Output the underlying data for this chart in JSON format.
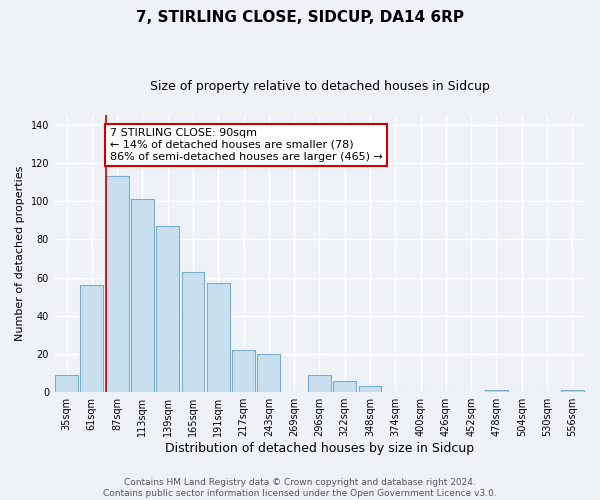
{
  "title": "7, STIRLING CLOSE, SIDCUP, DA14 6RP",
  "subtitle": "Size of property relative to detached houses in Sidcup",
  "xlabel": "Distribution of detached houses by size in Sidcup",
  "ylabel": "Number of detached properties",
  "bar_labels": [
    "35sqm",
    "61sqm",
    "87sqm",
    "113sqm",
    "139sqm",
    "165sqm",
    "191sqm",
    "217sqm",
    "243sqm",
    "269sqm",
    "296sqm",
    "322sqm",
    "348sqm",
    "374sqm",
    "400sqm",
    "426sqm",
    "452sqm",
    "478sqm",
    "504sqm",
    "530sqm",
    "556sqm"
  ],
  "bar_values": [
    9,
    56,
    113,
    101,
    87,
    63,
    57,
    22,
    20,
    0,
    9,
    6,
    3,
    0,
    0,
    0,
    0,
    1,
    0,
    0,
    1
  ],
  "bar_color": "#c8dff0",
  "bar_edge_color": "#7aadcc",
  "vline_index": 2,
  "vline_color": "#cc0000",
  "annotation_text": "7 STIRLING CLOSE: 90sqm\n← 14% of detached houses are smaller (78)\n86% of semi-detached houses are larger (465) →",
  "annotation_box_facecolor": "white",
  "annotation_box_edgecolor": "#cc0000",
  "ylim": [
    0,
    145
  ],
  "yticks": [
    0,
    20,
    40,
    60,
    80,
    100,
    120,
    140
  ],
  "footer_line1": "Contains HM Land Registry data © Crown copyright and database right 2024.",
  "footer_line2": "Contains public sector information licensed under the Open Government Licence v3.0.",
  "bg_color": "#eef2f7",
  "grid_color": "white",
  "title_fontsize": 11,
  "subtitle_fontsize": 9,
  "xlabel_fontsize": 9,
  "ylabel_fontsize": 8,
  "tick_fontsize": 7,
  "annotation_fontsize": 8,
  "footer_fontsize": 6.5
}
